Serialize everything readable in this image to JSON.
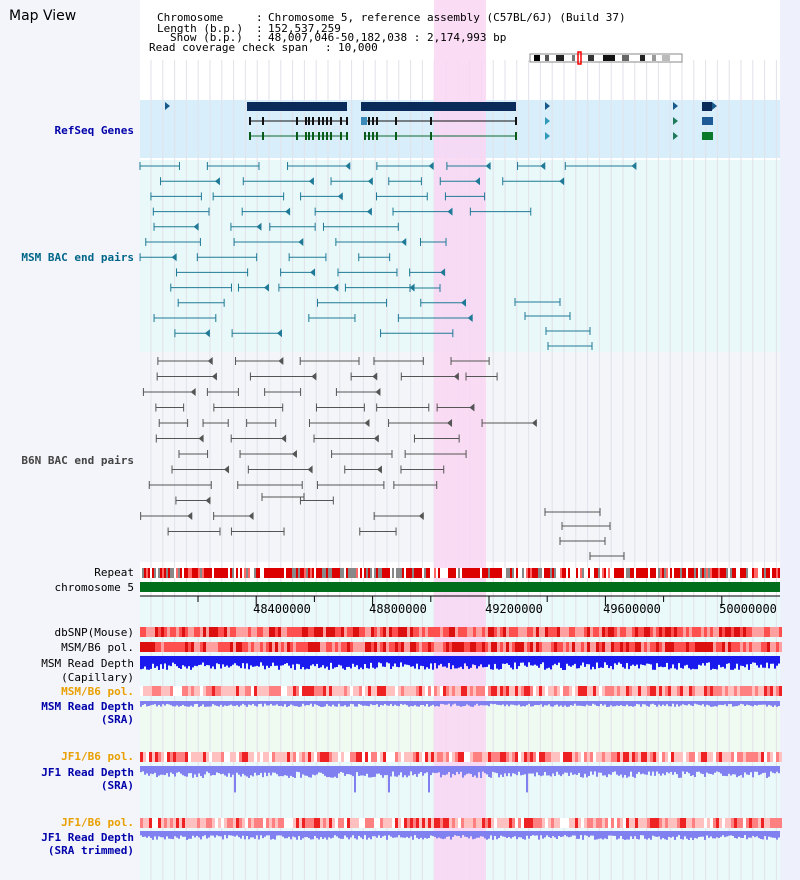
{
  "title": "Map View",
  "header": {
    "rows": [
      {
        "label": "Chromosome",
        "value": "Chromosome 5, reference assembly (C57BL/6J) (Build 37)"
      },
      {
        "label": "Length (b.p.)",
        "value": "152,537,259"
      },
      {
        "label": "Show (b.p.)",
        "value": "48,007,046-50,182,038 : 2,174,993 bp"
      },
      {
        "label": "Read coverage check span",
        "value": "10,000"
      }
    ]
  },
  "tracks": {
    "refseq": {
      "label": "RefSeq Genes",
      "color": "#0000aa"
    },
    "msm_bac": {
      "label": "MSM BAC end pairs",
      "color": "#006688"
    },
    "b6n_bac": {
      "label": "B6N BAC end pairs",
      "color": "#444444"
    },
    "repeat": {
      "label": "Repeat"
    },
    "chromosome": {
      "label": "chromosome 5"
    },
    "dbsnp": {
      "label": "dbSNP(Mouse)"
    },
    "msm_b6_pol1": {
      "label": "MSM/B6 pol."
    },
    "msm_read_depth_cap": {
      "line1": "MSM Read Depth",
      "line2": "(Capillary)"
    },
    "msm_b6_pol2": {
      "label": "MSM/B6 pol."
    },
    "msm_read_depth_sra": {
      "line1": "MSM Read Depth",
      "line2": "(SRA)"
    },
    "jf1_b6_pol1": {
      "label": "JF1/B6 pol."
    },
    "jf1_read_depth_sra": {
      "line1": "JF1 Read Depth",
      "line2": "(SRA)"
    },
    "jf1_b6_pol2": {
      "label": "JF1/B6 pol."
    },
    "jf1_read_depth_trim": {
      "line1": "JF1 Read Depth",
      "line2": "(SRA trimmed)"
    }
  },
  "axis": {
    "ticks": [
      "48400000",
      "48800000",
      "49200000",
      "49600000",
      "50000000"
    ]
  },
  "colors": {
    "gene": "#0a2a5a",
    "msm": "#1e7a96",
    "b6n": "#555555",
    "highlight": "#f9d6f3",
    "repeat": "#cc0000",
    "chrom": "#006e1a",
    "snp": "#ff3030",
    "depth_blue": "#1a1aee",
    "depth_violet": "#8080f0",
    "orange_label": "#e8a000"
  }
}
